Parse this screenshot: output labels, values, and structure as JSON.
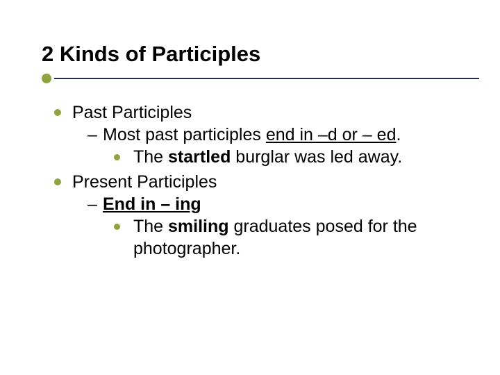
{
  "title": "2 Kinds of Participles",
  "colors": {
    "background": "#ffffff",
    "text": "#000000",
    "accent": "#8fa440",
    "rule": "#2a2a5a"
  },
  "typography": {
    "title_fontsize": 31,
    "body_fontsize": 25,
    "font_family": "Arial",
    "title_weight": "bold"
  },
  "items": [
    {
      "label": "Past Participles",
      "sub": {
        "prefix": "Most past participles ",
        "underlined": "end in –d or – ed",
        "suffix": ".",
        "example": {
          "prefix": "The ",
          "bold": "startled",
          "suffix": " burglar was led away."
        }
      }
    },
    {
      "label": "Present Participles",
      "sub": {
        "prefix": "",
        "underlined": "End in – ing",
        "suffix": "",
        "example": {
          "prefix": "The ",
          "bold": "smiling",
          "suffix": " graduates posed for the photographer."
        }
      }
    }
  ]
}
